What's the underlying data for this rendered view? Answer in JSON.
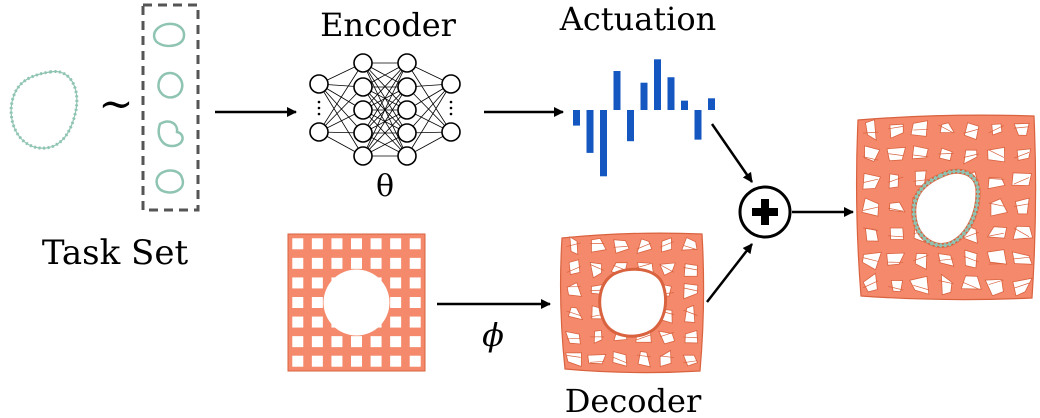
{
  "labels": {
    "encoder": "Encoder",
    "actuation": "Actuation",
    "theta": "θ",
    "task_set": "Task Set",
    "tilde": "~",
    "phi": "ϕ",
    "decoder": "Decoder"
  },
  "actuation_bars": [
    -0.2,
    -0.55,
    -0.85,
    0.5,
    -0.4,
    0.35,
    0.65,
    0.42,
    0.12,
    -0.38,
    0.15
  ],
  "colors": {
    "task_shape": "#8fc4b3",
    "actuation_bar": "#1557c0",
    "lattice_fill": "#f4896b",
    "lattice_stroke": "#d9623f",
    "frame_dash": "#555555"
  },
  "icons": {
    "combine": "circled-plus-icon",
    "network": "neural-network-icon"
  }
}
